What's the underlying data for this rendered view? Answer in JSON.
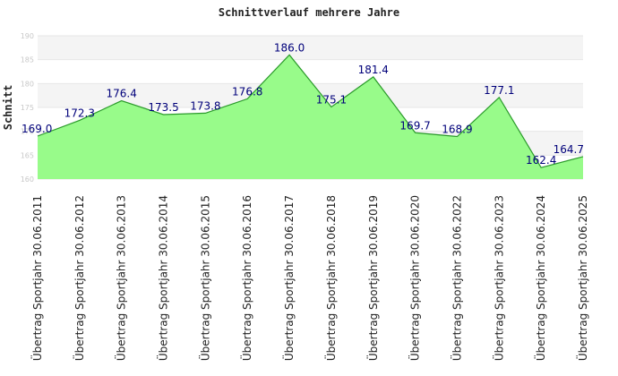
{
  "chart_data": {
    "type": "area",
    "title": "Schnittverlauf mehrere Jahre",
    "xlabel": "",
    "ylabel": "Schnitt",
    "ylim": [
      160,
      190
    ],
    "yticks": [
      160,
      165,
      170,
      175,
      180,
      185,
      190
    ],
    "grid": true,
    "legend": "none",
    "categories": [
      "Übertrag Sportjahr 30.06.2011",
      "Übertrag Sportjahr 30.06.2012",
      "Übertrag Sportjahr 30.06.2013",
      "Übertrag Sportjahr 30.06.2014",
      "Übertrag Sportjahr 30.06.2015",
      "Übertrag Sportjahr 30.06.2016",
      "Übertrag Sportjahr 30.06.2017",
      "Übertrag Sportjahr 30.06.2018",
      "Übertrag Sportjahr 30.06.2019",
      "Übertrag Sportjahr 30.06.2020",
      "Übertrag Sportjahr 30.06.2022",
      "Übertrag Sportjahr 30.06.2023",
      "Übertrag Sportjahr 30.06.2024",
      "Übertrag Sportjahr 30.06.2025"
    ],
    "values": [
      169.0,
      172.3,
      176.4,
      173.5,
      173.8,
      176.8,
      186.0,
      175.1,
      181.4,
      169.7,
      168.9,
      177.1,
      162.4,
      164.7
    ],
    "data_labels": [
      "169.0",
      "172.3",
      "176.4",
      "173.5",
      "173.8",
      "176.8",
      "186.0",
      "175.1",
      "181.4",
      "169.7",
      "168.9",
      "177.1",
      "162.4",
      "164.7"
    ],
    "colors": {
      "fill": "#98fb8a",
      "line": "#2a9a2a",
      "band_light": "#f4f4f4",
      "band_white": "#ffffff",
      "label": "#00007a"
    }
  }
}
